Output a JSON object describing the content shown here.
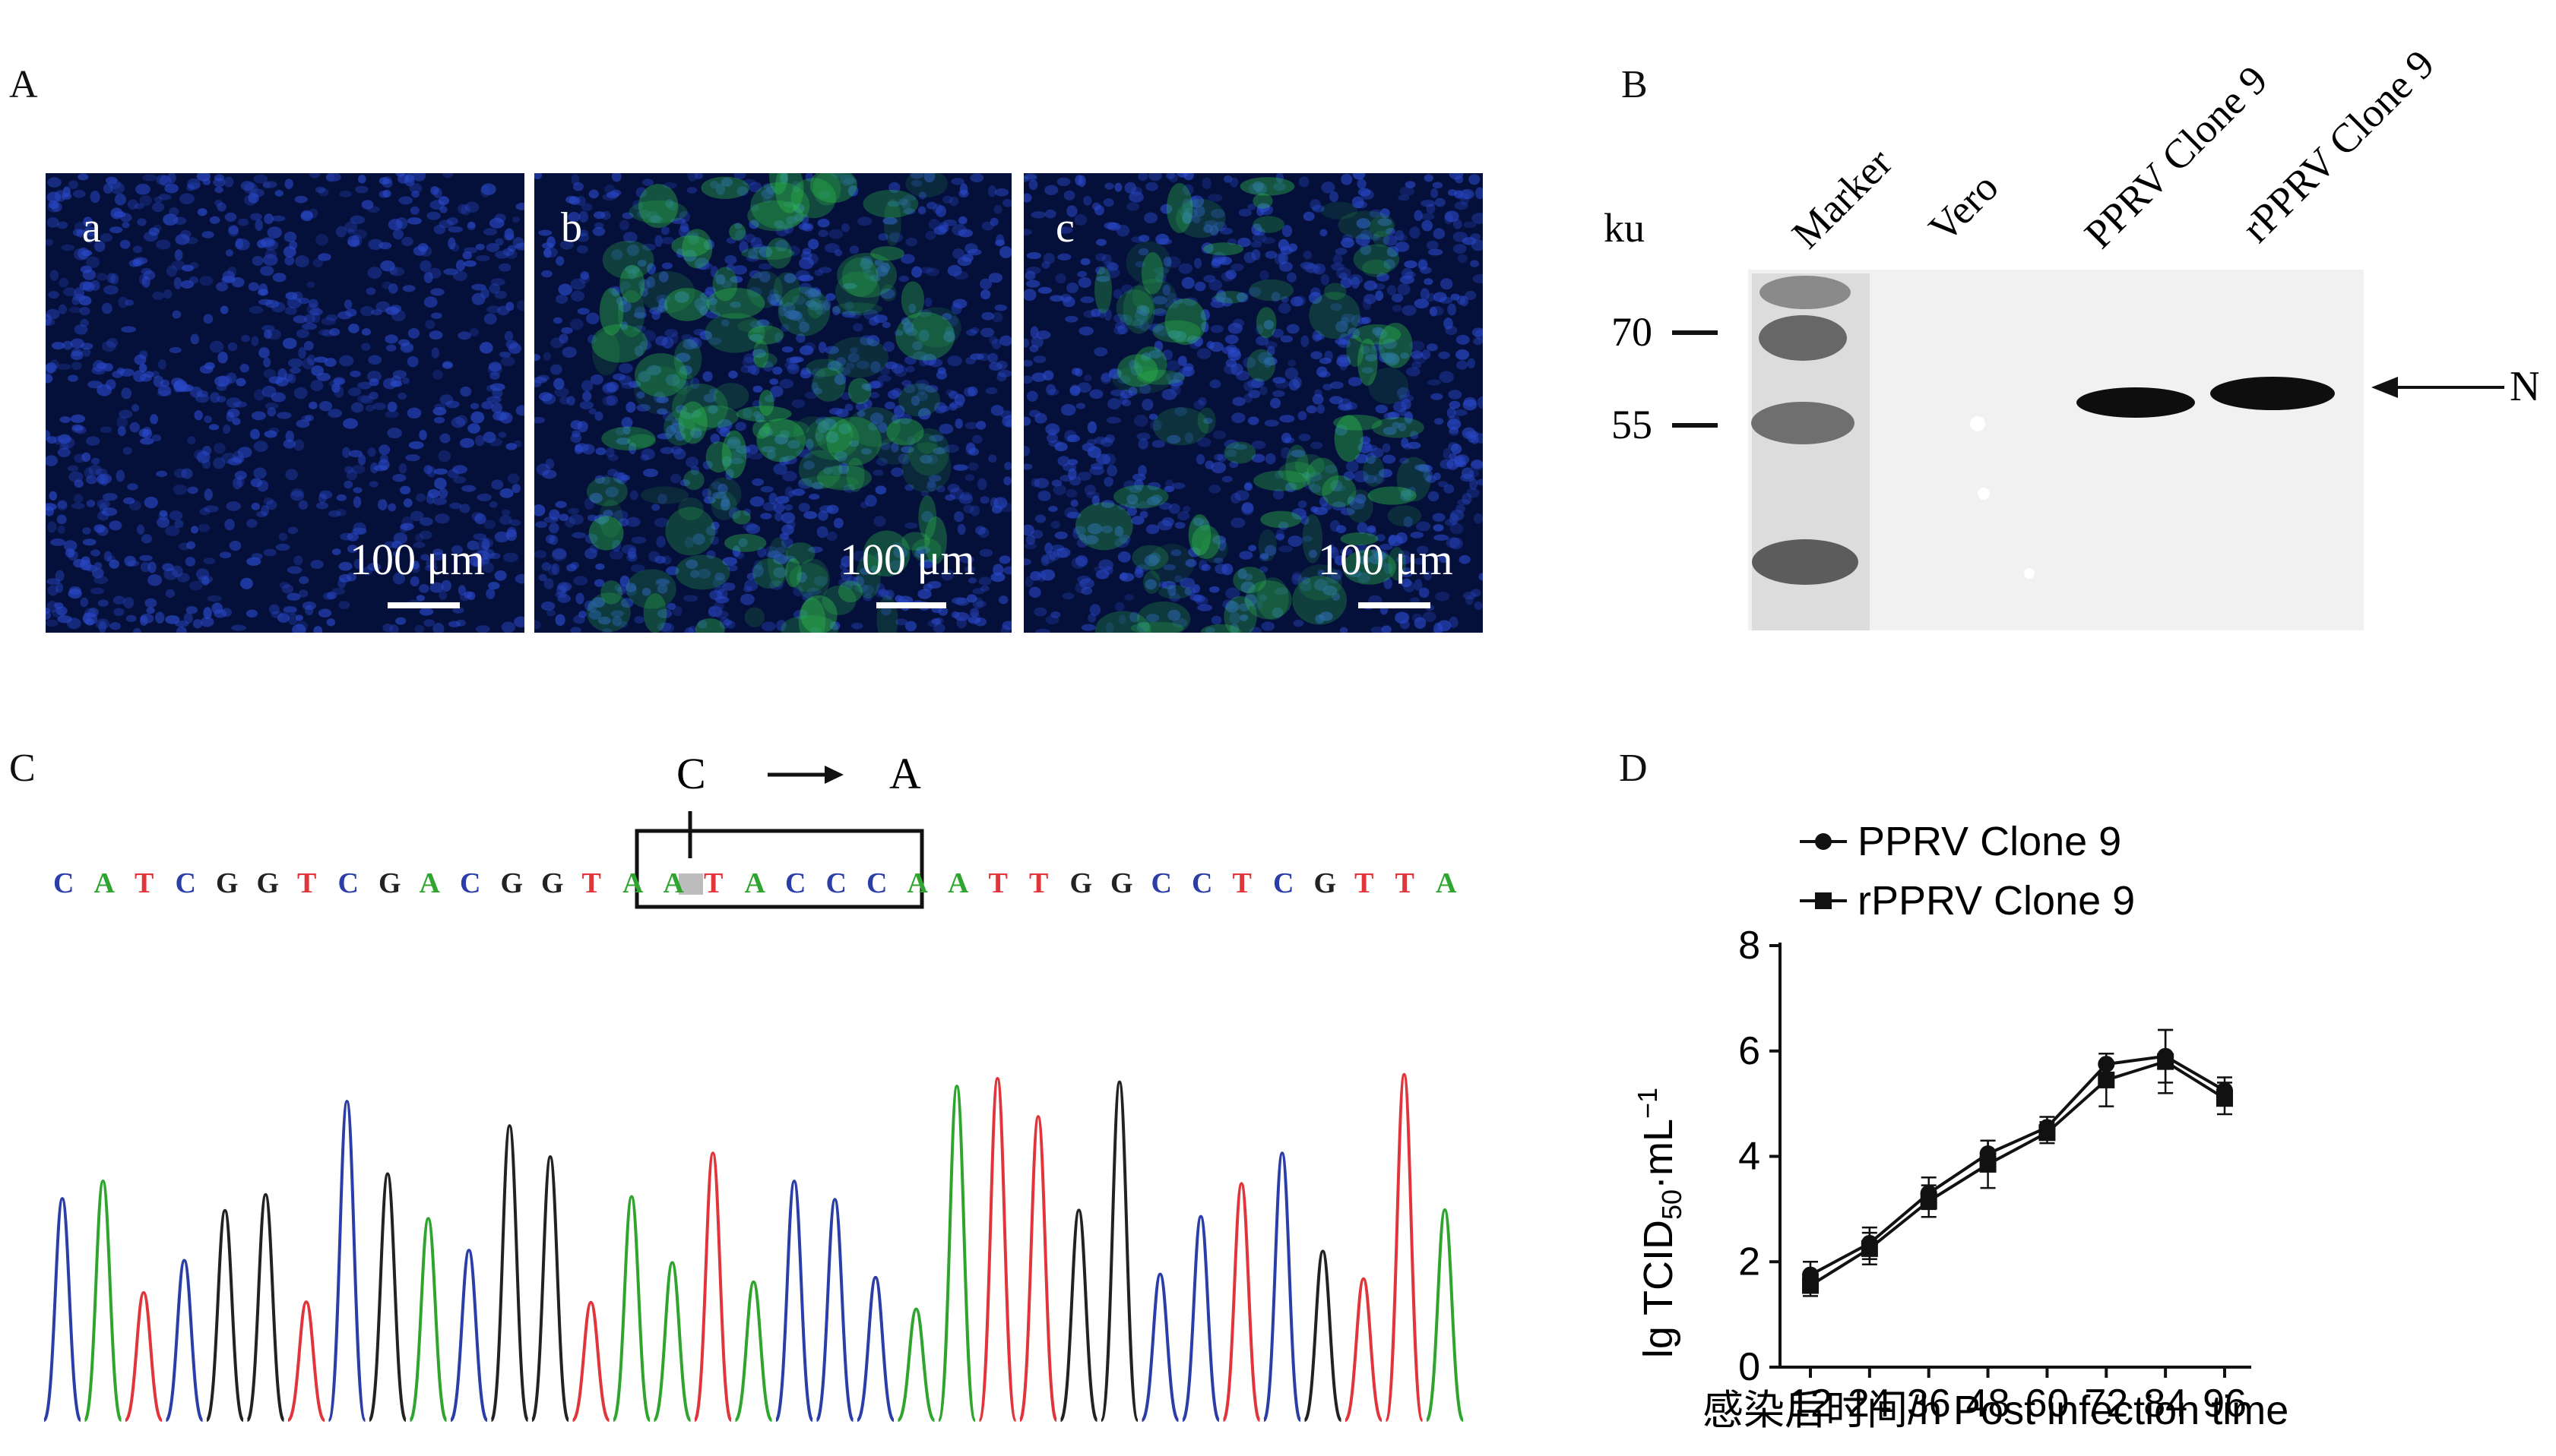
{
  "panels": {
    "A": {
      "label": "A",
      "images": [
        {
          "sub": "a",
          "scale": "100 μm",
          "green": 0.0
        },
        {
          "sub": "b",
          "scale": "100 μm",
          "green": 0.85
        },
        {
          "sub": "c",
          "scale": "100 μm",
          "green": 0.55
        }
      ]
    },
    "B": {
      "label": "B",
      "unit": "ku",
      "markers": [
        "70",
        "55"
      ],
      "lanes": [
        "Marker",
        "Vero",
        "PPRV Clone 9",
        "rPPRV Clone 9"
      ],
      "band_label": "N"
    },
    "C": {
      "label": "C",
      "mutation_from": "C",
      "mutation_to": "A",
      "sequence": "CATCGGTCGACGGTAATACCCAATTGGCCTCGTTA",
      "base_colors": {
        "A": "#2fa52f",
        "C": "#2b3ea8",
        "G": "#222222",
        "T": "#e0363b"
      }
    },
    "D": {
      "label": "D"
    }
  },
  "chart_data": {
    "type": "line",
    "x": [
      12,
      24,
      36,
      48,
      60,
      72,
      84,
      96
    ],
    "xlabel": "感染后时间/h  Post infection time",
    "ylabel": "lg TCID50·mL−1",
    "ylim": [
      0,
      8
    ],
    "yticks": [
      0,
      2,
      4,
      6,
      8
    ],
    "legend_position": "top-left",
    "series": [
      {
        "name": "PPRV Clone 9",
        "marker": "circle",
        "values": [
          1.75,
          2.35,
          3.3,
          4.05,
          4.55,
          5.75,
          5.9,
          5.25
        ],
        "errors": [
          0.25,
          0.3,
          0.3,
          0.25,
          0.2,
          0.2,
          0.5,
          0.25
        ]
      },
      {
        "name": "rPPRV Clone 9",
        "marker": "square",
        "values": [
          1.55,
          2.25,
          3.15,
          3.85,
          4.45,
          5.45,
          5.8,
          5.1
        ],
        "errors": [
          0.2,
          0.3,
          0.3,
          0.45,
          0.2,
          0.5,
          0.6,
          0.3
        ]
      }
    ]
  }
}
